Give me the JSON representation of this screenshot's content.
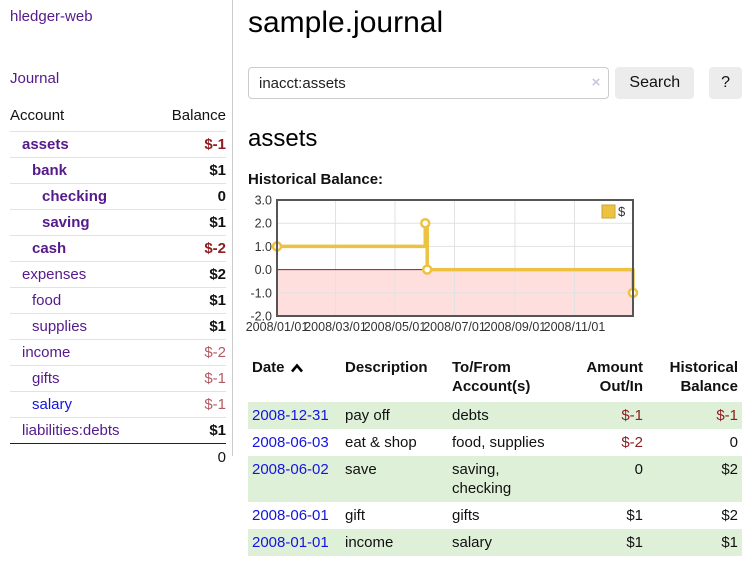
{
  "colors": {
    "link_purple": "#551a8b",
    "link_blue": "#1414e0",
    "negative_strong": "#8f1d21",
    "negative_soft": "#b15c64",
    "row_stripe_green": "#dff0d8",
    "chart_line_gold": "#edc240"
  },
  "sidebar": {
    "brand": "hledger-web",
    "nav_journal": "Journal",
    "table": {
      "account_header": "Account",
      "balance_header": "Balance",
      "accounts": [
        {
          "name": "assets",
          "balance": "$-1",
          "level": 1,
          "bold": true
        },
        {
          "name": "bank",
          "balance": "$1",
          "level": 2,
          "bold": true
        },
        {
          "name": "checking",
          "balance": "0",
          "level": 3,
          "bold": true
        },
        {
          "name": "saving",
          "balance": "$1",
          "level": 3,
          "bold": true
        },
        {
          "name": "cash",
          "balance": "$-2",
          "level": 2,
          "bold": true
        },
        {
          "name": "expenses",
          "balance": "$2",
          "level": 1
        },
        {
          "name": "food",
          "balance": "$1",
          "level": 2
        },
        {
          "name": "supplies",
          "balance": "$1",
          "level": 2
        },
        {
          "name": "income",
          "balance": "$-2",
          "level": 1,
          "soft_negative": true
        },
        {
          "name": "gifts",
          "balance": "$-1",
          "level": 2,
          "soft_negative": true
        },
        {
          "name": "salary",
          "balance": "$-1",
          "level": 2,
          "soft_negative": true,
          "link_color": "blue"
        },
        {
          "name": "liabilities:debts",
          "balance": "$1",
          "level": 1
        }
      ],
      "total": "0"
    }
  },
  "header": {
    "title": "sample.journal"
  },
  "search": {
    "value": "inacct:assets",
    "clear_icon": "×",
    "search_button": "Search",
    "help_button": "?"
  },
  "content": {
    "account_heading": "assets",
    "chart_title": "Historical Balance:"
  },
  "chart_data": {
    "type": "line",
    "step": true,
    "title": "Historical Balance",
    "series": [
      {
        "name": "$",
        "color": "#edc240",
        "points": [
          {
            "date": "2008-01-01",
            "value": 1
          },
          {
            "date": "2008-06-01",
            "value": 2
          },
          {
            "date": "2008-06-03",
            "value": 0
          },
          {
            "date": "2008-12-31",
            "value": -1
          }
        ]
      }
    ],
    "x_domain": [
      "2008-01-01",
      "2008-12-31"
    ],
    "x_ticks": [
      "2008/01/01",
      "2008/03/01",
      "2008/05/01",
      "2008/07/01",
      "2008/09/01",
      "2008/11/01"
    ],
    "y_ticks": [
      3,
      2,
      1,
      0,
      -1,
      -2
    ],
    "ylim": [
      -2,
      3
    ],
    "grid": true,
    "negative_region_color": "#ffdede",
    "zero_line_color": "#8f1d21",
    "legend": {
      "label": "$",
      "position": "top-right"
    }
  },
  "register_table": {
    "headers": {
      "date": "Date",
      "description": "Description",
      "account": [
        "To/From",
        "Account(s)"
      ],
      "amount": [
        "Amount",
        "Out/In"
      ],
      "balance": [
        "Historical",
        "Balance"
      ]
    },
    "rows": [
      {
        "date": "2008-12-31",
        "description": "pay off",
        "accounts": [
          "debts"
        ],
        "amount": "$-1",
        "balance": "$-1"
      },
      {
        "date": "2008-06-03",
        "description": "eat & shop",
        "accounts": [
          "food, supplies"
        ],
        "amount": "$-2",
        "balance": "0"
      },
      {
        "date": "2008-06-02",
        "description": "save",
        "accounts": [
          "saving,",
          "checking"
        ],
        "amount": "0",
        "balance": "$2"
      },
      {
        "date": "2008-06-01",
        "description": "gift",
        "accounts": [
          "gifts"
        ],
        "amount": "$1",
        "balance": "$2"
      },
      {
        "date": "2008-01-01",
        "description": "income",
        "accounts": [
          "salary"
        ],
        "amount": "$1",
        "balance": "$1"
      }
    ]
  }
}
